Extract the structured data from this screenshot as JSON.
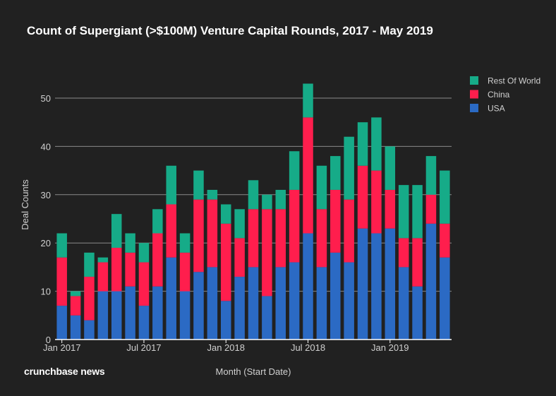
{
  "brand": "crunchbase news",
  "chart_data": {
    "type": "bar",
    "stacked": true,
    "title": "Count of Supergiant (>$100M) Venture Capital Rounds, 2017 - May 2019",
    "xlabel": "Month (Start Date)",
    "ylabel": "Deal Counts",
    "ylim": [
      0,
      55
    ],
    "yticks": [
      0,
      10,
      20,
      30,
      40,
      50
    ],
    "grid": true,
    "legend_position": "top-right",
    "categories": [
      "2017-01",
      "2017-02",
      "2017-03",
      "2017-04",
      "2017-05",
      "2017-06",
      "2017-07",
      "2017-08",
      "2017-09",
      "2017-10",
      "2017-11",
      "2017-12",
      "2018-01",
      "2018-02",
      "2018-03",
      "2018-04",
      "2018-05",
      "2018-06",
      "2018-07",
      "2018-08",
      "2018-09",
      "2018-10",
      "2018-11",
      "2018-12",
      "2019-01",
      "2019-02",
      "2019-03",
      "2019-04",
      "2019-05"
    ],
    "xtick_labels": [
      {
        "index": 0,
        "label": "Jan 2017"
      },
      {
        "index": 6,
        "label": "Jul 2017"
      },
      {
        "index": 12,
        "label": "Jan 2018"
      },
      {
        "index": 18,
        "label": "Jul 2018"
      },
      {
        "index": 24,
        "label": "Jan 2019"
      }
    ],
    "series": [
      {
        "name": "USA",
        "color": "#2b6ac4",
        "values": [
          7,
          5,
          4,
          10,
          10,
          11,
          7,
          11,
          17,
          10,
          14,
          15,
          8,
          13,
          15,
          9,
          15,
          16,
          22,
          15,
          18,
          16,
          23,
          22,
          23,
          15,
          11,
          24,
          17
        ]
      },
      {
        "name": "China",
        "color": "#ff1e4d",
        "values": [
          10,
          4,
          9,
          6,
          9,
          7,
          9,
          11,
          11,
          8,
          15,
          14,
          16,
          8,
          12,
          18,
          12,
          15,
          24,
          12,
          13,
          13,
          13,
          13,
          8,
          6,
          10,
          6,
          7
        ]
      },
      {
        "name": "Rest Of World",
        "color": "#16ab88",
        "values": [
          5,
          1,
          5,
          1,
          7,
          4,
          4,
          5,
          8,
          4,
          6,
          2,
          4,
          6,
          6,
          3,
          4,
          8,
          7,
          9,
          7,
          13,
          9,
          11,
          9,
          11,
          11,
          8,
          11
        ]
      }
    ],
    "legend": [
      "Rest Of World",
      "China",
      "USA"
    ]
  }
}
